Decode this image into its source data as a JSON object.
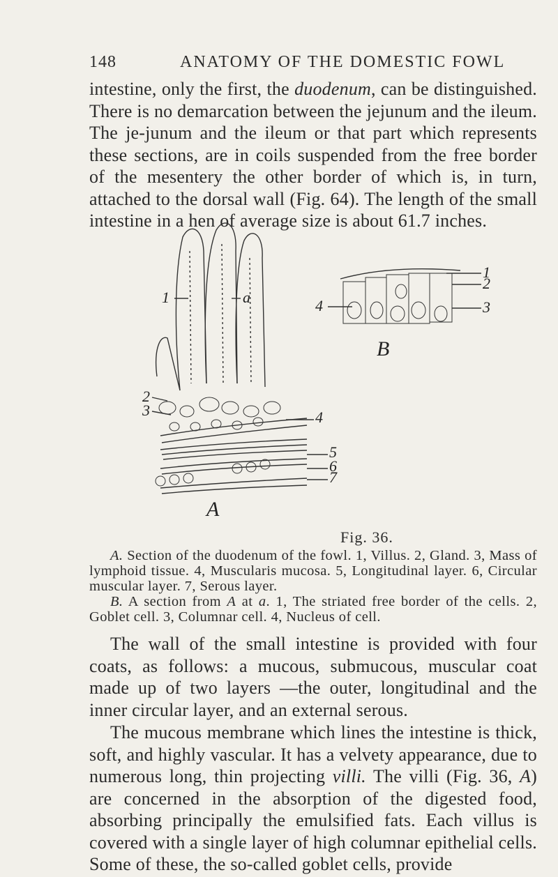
{
  "header": {
    "page_number": "148",
    "running_title": "ANATOMY OF THE DOMESTIC FOWL"
  },
  "paragraph_1": {
    "runs": [
      {
        "text": "intestine, only the first, the ",
        "italic": false
      },
      {
        "text": "duodenum",
        "italic": true
      },
      {
        "text": ", can be distinguished. There is no demarcation between the jejunum and the ileum. The je-junum and the ileum or that part which represents these sections, are in coils suspended from the free border of the mesentery the other border of which is, in turn, attached to the dorsal wall (Fig. 64). The length of the small intestine in a hen of average size is about 61.7 inches.",
        "italic": false
      }
    ]
  },
  "figure": {
    "label": "Fig. 36.",
    "panel_a": {
      "name": "A",
      "point": "a",
      "labels": [
        "1",
        "2",
        "3",
        "4",
        "5",
        "6",
        "7"
      ]
    },
    "panel_b": {
      "name": "B",
      "labels": [
        "1",
        "2",
        "3",
        "4"
      ]
    },
    "caption": [
      {
        "runs": [
          {
            "text": "A.",
            "italic": true
          },
          {
            "text": " Section of the duodenum of the fowl. 1, Villus. 2, Gland. 3, Mass of lymphoid tissue. 4, Muscularis mucosa. 5, Longitudinal layer. 6, Circular muscular layer. 7, Serous layer.",
            "italic": false
          }
        ]
      },
      {
        "runs": [
          {
            "text": "B.",
            "italic": true
          },
          {
            "text": " A section from ",
            "italic": false
          },
          {
            "text": "A",
            "italic": true
          },
          {
            "text": " at ",
            "italic": false
          },
          {
            "text": "a",
            "italic": true
          },
          {
            "text": ". 1, The striated free border of the cells. 2, Goblet cell. 3, Columnar cell. 4, Nucleus of cell.",
            "italic": false
          }
        ]
      }
    ]
  },
  "paragraph_2": {
    "runs": [
      {
        "text": "The wall of the small intestine is provided with four coats, as follows: a mucous, submucous, muscular coat made up of two layers —the outer, longitudinal and the inner circular layer, and an external serous.",
        "italic": false
      }
    ]
  },
  "paragraph_3": {
    "runs": [
      {
        "text": "The mucous membrane which lines the intestine is thick, soft, and highly vascular. It has a velvety appearance, due to numerous long, thin projecting ",
        "italic": false
      },
      {
        "text": "villi.",
        "italic": true
      },
      {
        "text": " The villi (Fig. 36, ",
        "italic": false
      },
      {
        "text": "A",
        "italic": true
      },
      {
        "text": ") are concerned in the absorption of the digested food, absorbing principally the emulsified fats. Each villus is covered with a single layer of high columnar epithelial cells. Some of these, the so-called goblet cells, provide",
        "italic": false
      }
    ]
  }
}
